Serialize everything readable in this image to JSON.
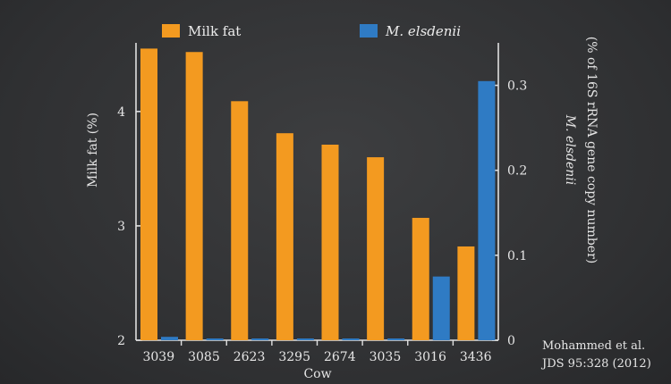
{
  "chart_data": {
    "type": "bar",
    "categories": [
      "3039",
      "3085",
      "2623",
      "3295",
      "2674",
      "3035",
      "3016",
      "3436"
    ],
    "xlabel": "Cow",
    "series": [
      {
        "name": "Milk fat",
        "axis": "left",
        "color": "#f39a20",
        "values": [
          4.55,
          4.52,
          4.09,
          3.81,
          3.71,
          3.6,
          3.07,
          2.82
        ]
      },
      {
        "name": "M. elsdenii",
        "axis": "right",
        "color": "#2f7bc4",
        "values": [
          0.004,
          0.002,
          0.002,
          0.002,
          0.001,
          0.002,
          0.075,
          0.305
        ]
      }
    ],
    "y_left": {
      "label": "Milk fat (%)",
      "range": [
        2,
        4.6
      ],
      "ticks": [
        2,
        3,
        4
      ],
      "tick_labels": [
        "2",
        "3",
        "4"
      ]
    },
    "y_right": {
      "label_line1": "M. elsdenii",
      "label_line2": "(% of 16S rRNA gene copy number)",
      "range": [
        0,
        0.35
      ],
      "ticks": [
        0,
        0.1,
        0.2,
        0.3
      ],
      "tick_labels": [
        "0",
        "0.1",
        "0.2",
        "0.3"
      ]
    },
    "legend_placement": "top",
    "grid": false
  },
  "citation": {
    "line1": "Mohammed et al.",
    "line2": "JDS 95:328 (2012)"
  },
  "colors": {
    "background": "#333436",
    "axis": "#e0e0e0",
    "text": "#e8e8e8"
  }
}
